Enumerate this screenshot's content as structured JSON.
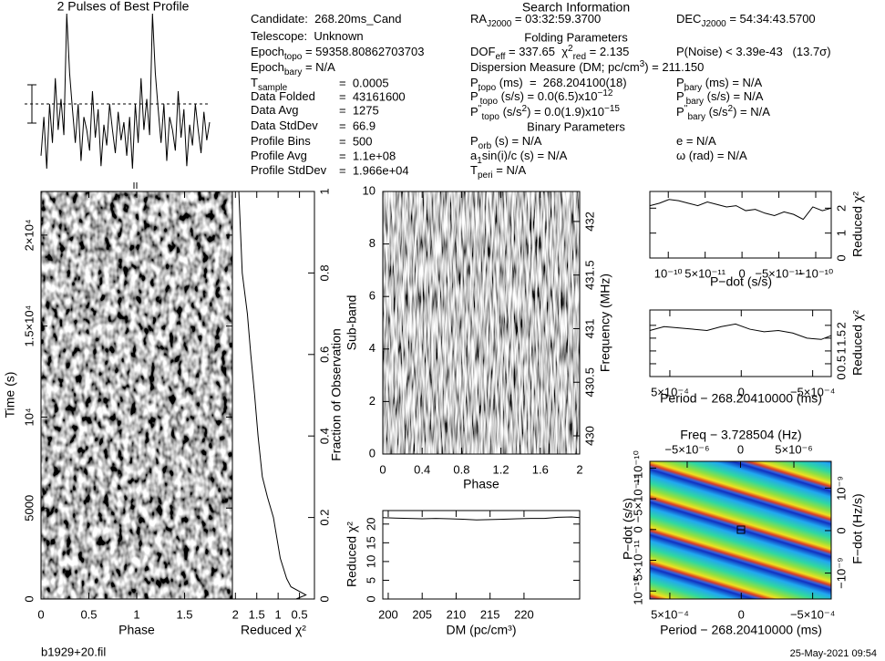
{
  "header": {
    "search_title": "Search Information",
    "folding_title": "Folding Parameters",
    "binary_title": "Binary Parameters",
    "left": [
      [
        {
          "t": "Candidate:  268.20ms_Cand"
        }
      ],
      [
        {
          "t": "Telescope:  Unknown"
        }
      ],
      [
        {
          "t": "Epoch"
        },
        {
          "sub": "topo"
        },
        {
          "t": " = 59358.80862703703"
        }
      ],
      [
        {
          "t": "Epoch"
        },
        {
          "sub": "bary"
        },
        {
          "t": " = N/A"
        }
      ]
    ],
    "table": [
      {
        "label": [
          {
            "t": "T"
          },
          {
            "sub": "sample"
          }
        ],
        "value": "=  0.0005"
      },
      {
        "label": [
          {
            "t": "Data Folded"
          }
        ],
        "value": "=  43161600"
      },
      {
        "label": [
          {
            "t": "Data Avg"
          }
        ],
        "value": "=  1275"
      },
      {
        "label": [
          {
            "t": "Data StdDev"
          }
        ],
        "value": "=  66.9"
      },
      {
        "label": [
          {
            "t": "Profile Bins"
          }
        ],
        "value": "=  500"
      },
      {
        "label": [
          {
            "t": "Profile Avg"
          }
        ],
        "value": "=  1.1e+08"
      },
      {
        "label": [
          {
            "t": "Profile StdDev"
          }
        ],
        "value": "=  1.966e+04"
      }
    ],
    "middle": [
      [
        {
          "t": "RA"
        },
        {
          "sub": "J2000"
        },
        {
          "t": " = 03:32:59.3700"
        }
      ],
      [
        {
          "t": "DOF"
        },
        {
          "sub": "eff"
        },
        {
          "t": " = 337.65  χ"
        },
        {
          "sup": "2"
        },
        {
          "sub": "red"
        },
        {
          "t": " = 2.135"
        }
      ],
      [
        {
          "t": "Dispersion Measure (DM; pc/cm"
        },
        {
          "sup": "3"
        },
        {
          "t": ") = 211.150"
        }
      ],
      [
        {
          "t": "P"
        },
        {
          "sub": "topo"
        },
        {
          "t": " (ms)  =  268.204100(18)"
        }
      ],
      [
        {
          "t": "P"
        },
        {
          "sup": "'"
        },
        {
          "sub": "topo"
        },
        {
          "t": " (s/s) = 0.0(6.5)x10"
        },
        {
          "sup": "−12"
        }
      ],
      [
        {
          "t": "P"
        },
        {
          "sup": "''"
        },
        {
          "sub": "topo"
        },
        {
          "t": " (s/s"
        },
        {
          "sup": "2"
        },
        {
          "t": ") = 0.0(1.9)x10"
        },
        {
          "sup": "−15"
        }
      ],
      [
        {
          "t": "P"
        },
        {
          "sub": "orb"
        },
        {
          "t": " (s) = N/A"
        }
      ],
      [
        {
          "t": "a"
        },
        {
          "sub": "1"
        },
        {
          "t": "sin(i)/c (s) = N/A"
        }
      ],
      [
        {
          "t": "T"
        },
        {
          "sub": "peri"
        },
        {
          "t": " = N/A"
        }
      ]
    ],
    "right": [
      [
        {
          "t": "DEC"
        },
        {
          "sub": "J2000"
        },
        {
          "t": " = 54:34:43.5700"
        }
      ],
      [
        {
          "t": "P(Noise) < 3.39e-43   (13.7σ)"
        }
      ],
      [
        {
          "t": "P"
        },
        {
          "sub": "bary"
        },
        {
          "t": " (ms) = N/A"
        }
      ],
      [
        {
          "t": "P"
        },
        {
          "sup": "'"
        },
        {
          "sub": "bary"
        },
        {
          "t": " (s/s) = N/A"
        }
      ],
      [
        {
          "t": "P"
        },
        {
          "sup": "''"
        },
        {
          "sub": "bary"
        },
        {
          "t": " (s/s"
        },
        {
          "sup": "2"
        },
        {
          "t": ") = N/A"
        }
      ],
      [
        {
          "t": "e = N/A"
        }
      ],
      [
        {
          "t": "ω (rad) = N/A"
        }
      ]
    ]
  },
  "chart_data": [
    {
      "type": "line",
      "title": "2 Pulses of Best Profile",
      "values": [
        40,
        55,
        35,
        60,
        45,
        70,
        50,
        62,
        48,
        95,
        72,
        58,
        45,
        60,
        38,
        55,
        50,
        42,
        65,
        47,
        58,
        36,
        52,
        44,
        60,
        50,
        41,
        57,
        46,
        53,
        40,
        55,
        35,
        60,
        45,
        70,
        50,
        62,
        48,
        95,
        72,
        58,
        45,
        60,
        38,
        55,
        50,
        42,
        65,
        47,
        58,
        36,
        52,
        44,
        60,
        50,
        41,
        57,
        46,
        53
      ]
    },
    {
      "type": "image",
      "xlabel": "Phase",
      "ylabel": "Time (s)",
      "xlim": [
        0,
        2
      ],
      "xticks": [
        0,
        0.5,
        1,
        1.5
      ],
      "ylim": [
        0,
        22400
      ],
      "yticks": [
        0,
        5000,
        {
          "value": 10000,
          "label": "10⁴"
        },
        {
          "value": 15000,
          "label": "1.5×10⁴"
        },
        {
          "value": 20000,
          "label": "2×10⁴"
        }
      ]
    },
    {
      "type": "line",
      "xlabel": "Reduced χ²",
      "ylabel": "Fraction of Observation",
      "xlim": [
        2.07,
        0.15
      ],
      "xticks": [
        2,
        1.5,
        1,
        0.5
      ],
      "ylim": [
        0,
        1
      ],
      "yticks": [
        0,
        0.2,
        0.4,
        0.6,
        0.8,
        1
      ],
      "x": [
        0.58,
        0.35,
        0.7,
        0.8,
        0.95,
        1.11,
        1.25,
        1.37,
        1.47,
        1.55,
        1.64,
        1.72,
        1.84,
        1.88,
        1.92
      ],
      "values": [
        0,
        0.01,
        0.03,
        0.05,
        0.1,
        0.2,
        0.25,
        0.3,
        0.4,
        0.5,
        0.6,
        0.7,
        0.8,
        0.9,
        1
      ]
    },
    {
      "type": "image",
      "xlabel": "Phase",
      "ylabel": "Sub-band",
      "y2label": "Frequency (MHz)",
      "xlim": [
        0,
        2
      ],
      "xticks": [
        0,
        0.4,
        0.8,
        1.2,
        1.6,
        2
      ],
      "ylim": [
        0,
        10
      ],
      "yticks": [
        0,
        2,
        4,
        6,
        8,
        10
      ],
      "y2lim": [
        429.83,
        432.28
      ],
      "y2ticks": [
        430,
        430.5,
        431,
        431.5,
        432
      ]
    },
    {
      "type": "line",
      "xlabel": "DM (pc/cm³)",
      "ylabel": "Reduced χ²",
      "xlim": [
        199.2,
        228.2
      ],
      "xticks": [
        200,
        205,
        210,
        215,
        220
      ],
      "ylim": [
        0,
        23.6
      ],
      "yticks": [
        0,
        5,
        10,
        15,
        20
      ],
      "x": [
        199.2,
        201,
        203,
        205,
        207,
        209,
        211,
        213,
        215,
        217,
        219,
        221,
        223,
        225,
        227,
        228.2
      ],
      "values": [
        21.7,
        21.6,
        21.5,
        21.4,
        21.5,
        21.4,
        21.3,
        21.1,
        21.2,
        21.3,
        21.4,
        21.5,
        21.5,
        21.8,
        21.9,
        21.7
      ]
    },
    {
      "type": "line",
      "xlabel": "P−dot (s/s)",
      "ylabel": "Reduced χ²",
      "xlim": [
        1.25e-10,
        -1.21e-10
      ],
      "xticks": [
        {
          "value": 1e-10,
          "label": "10⁻¹⁰"
        },
        {
          "value": 5e-11,
          "label": "5×10⁻¹¹"
        },
        0,
        {
          "value": -5e-11,
          "label": "−5×10⁻¹¹"
        },
        {
          "value": -1e-10,
          "label": "−10⁻¹⁰"
        }
      ],
      "ylim": [
        0,
        2.67
      ],
      "yticks": [
        0,
        1,
        2
      ],
      "x": [
        1.25e-10,
        1.12e-10,
        9.9e-11,
        8.6e-11,
        7.3e-11,
        6e-11,
        4.7e-11,
        3.4e-11,
        2.1e-11,
        8e-12,
        -5e-12,
        -1.8e-11,
        -3.1e-11,
        -4.4e-11,
        -5.7e-11,
        -7e-11,
        -8.3e-11,
        -9.6e-11,
        -1.09e-10,
        -1.21e-10
      ],
      "values": [
        2.1,
        2.2,
        2.35,
        2.3,
        2.2,
        2.1,
        2.25,
        2.15,
        2.05,
        2.1,
        1.9,
        1.95,
        1.8,
        1.7,
        1.85,
        1.75,
        1.55,
        2.05,
        1.9,
        2.0
      ]
    },
    {
      "type": "line",
      "xlabel": "Period − 268.20410000 (ms)",
      "ylabel": "Reduced χ²",
      "xlim": [
        0.00064,
        -0.00063
      ],
      "xticks": [
        {
          "value": 0.0005,
          "label": "5×10⁻⁴"
        },
        0,
        {
          "value": -0.0005,
          "label": "−5×10⁻⁴"
        }
      ],
      "ylim": [
        0,
        2.6
      ],
      "yticks": [
        0,
        0.5,
        1,
        1.5,
        2
      ],
      "x": [
        0.00064,
        0.00054,
        0.00044,
        0.00034,
        0.00024,
        0.00014,
        4e-05,
        -6e-05,
        -0.00016,
        -0.00026,
        -0.00036,
        -0.00046,
        -0.00056,
        -0.00063
      ],
      "values": [
        1.8,
        1.95,
        1.9,
        1.85,
        1.8,
        1.95,
        2.05,
        1.85,
        1.75,
        1.8,
        1.7,
        1.5,
        1.45,
        1.6
      ]
    },
    {
      "type": "image",
      "xlabel": "Period − 268.20410000 (ms)",
      "x2label": "Freq − 3.728504 (Hz)",
      "ylabel": "P−dot (s/s)",
      "y2label": "F−dot (Hz/s)",
      "xlim": [
        0.00064,
        -0.00063
      ],
      "xticks": [
        {
          "value": 0.0005,
          "label": "5×10⁻⁴"
        },
        0,
        {
          "value": -0.0005,
          "label": "−5×10⁻⁴"
        }
      ],
      "x2lim": [
        -8.5e-06,
        8.5e-06
      ],
      "x2ticks": [
        {
          "value": -5e-06,
          "label": "−5×10⁻⁶"
        },
        0,
        {
          "value": 5e-06,
          "label": "5×10⁻⁶"
        }
      ],
      "ylim": [
        1.13e-10,
        -1.11e-10
      ],
      "yticks": [
        {
          "value": 1e-10,
          "label": "10⁻¹⁰"
        },
        {
          "value": 5e-11,
          "label": "5×10⁻¹¹"
        },
        0,
        {
          "value": -5e-11,
          "label": "−5×10⁻¹¹"
        },
        {
          "value": -1e-10,
          "label": "−10⁻¹⁰"
        }
      ],
      "y2lim": [
        -1.61e-09,
        1.63e-09
      ],
      "y2ticks": [
        {
          "value": -1e-09,
          "label": "−10⁻⁹"
        },
        0,
        {
          "value": 1e-09,
          "label": "10⁻⁹"
        }
      ]
    }
  ],
  "footer": {
    "file": "b1929+20.fil",
    "date": "25-May-2021 09:54"
  }
}
